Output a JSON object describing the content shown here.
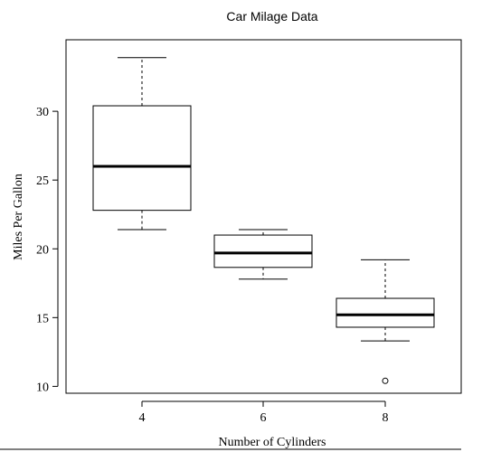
{
  "chart_data": {
    "type": "box",
    "title": "Car Milage Data",
    "xlabel": "Number of Cylinders",
    "ylabel": "Miles Per Gallon",
    "categories": [
      "4",
      "6",
      "8"
    ],
    "yticks": [
      10,
      15,
      20,
      25,
      30
    ],
    "ylim": [
      9.5,
      35.2
    ],
    "grid": false,
    "boxes": [
      {
        "category": "4",
        "min": 21.4,
        "q1": 22.8,
        "median": 26.0,
        "q3": 30.4,
        "max": 33.9,
        "outliers": []
      },
      {
        "category": "6",
        "min": 17.8,
        "q1": 18.65,
        "median": 19.7,
        "q3": 21.0,
        "max": 21.4,
        "outliers": []
      },
      {
        "category": "8",
        "min": 13.3,
        "q1": 14.3,
        "median": 15.2,
        "q3": 16.4,
        "max": 19.2,
        "outliers": [
          10.4
        ]
      }
    ]
  }
}
